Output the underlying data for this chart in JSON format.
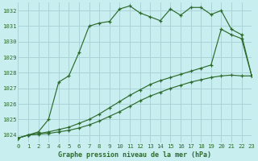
{
  "title": "Graphe pression niveau de la mer (hPa)",
  "bg_color": "#c8eef0",
  "grid_color": "#aad4d8",
  "line_color": "#2d6b2d",
  "xlim": [
    0,
    23
  ],
  "ylim": [
    1023.5,
    1032.5
  ],
  "yticks": [
    1024,
    1025,
    1026,
    1027,
    1028,
    1029,
    1030,
    1031,
    1032
  ],
  "xticks": [
    0,
    1,
    2,
    3,
    4,
    5,
    6,
    7,
    8,
    9,
    10,
    11,
    12,
    13,
    14,
    15,
    16,
    17,
    18,
    19,
    20,
    21,
    22,
    23
  ],
  "series1_x": [
    0,
    1,
    2,
    3,
    4,
    5,
    6,
    7,
    8,
    9,
    10,
    11,
    12,
    13,
    14,
    15,
    16,
    17,
    18,
    19,
    20,
    21,
    22,
    23
  ],
  "series1_y": [
    1023.8,
    1024.0,
    1024.2,
    1025.0,
    1027.4,
    1027.8,
    1029.3,
    1031.0,
    1031.2,
    1031.3,
    1032.1,
    1032.3,
    1031.85,
    1031.6,
    1031.35,
    1032.1,
    1031.7,
    1032.2,
    1032.2,
    1031.75,
    1032.0,
    1030.8,
    1030.45,
    1027.8
  ],
  "series2_x": [
    0,
    1,
    2,
    3,
    4,
    5,
    6,
    7,
    8,
    9,
    10,
    11,
    12,
    13,
    14,
    15,
    16,
    17,
    18,
    19,
    20,
    21,
    22,
    23
  ],
  "series2_y": [
    1023.8,
    1024.0,
    1024.1,
    1024.2,
    1024.35,
    1024.5,
    1024.75,
    1025.0,
    1025.35,
    1025.75,
    1026.15,
    1026.55,
    1026.9,
    1027.25,
    1027.5,
    1027.7,
    1027.9,
    1028.1,
    1028.3,
    1028.5,
    1030.8,
    1030.45,
    1030.2,
    1027.8
  ],
  "series3_x": [
    0,
    1,
    2,
    3,
    4,
    5,
    6,
    7,
    8,
    9,
    10,
    11,
    12,
    13,
    14,
    15,
    16,
    17,
    18,
    19,
    20,
    21,
    22,
    23
  ],
  "series3_y": [
    1023.8,
    1024.0,
    1024.05,
    1024.1,
    1024.2,
    1024.3,
    1024.45,
    1024.65,
    1024.9,
    1025.2,
    1025.5,
    1025.85,
    1026.2,
    1026.5,
    1026.75,
    1027.0,
    1027.2,
    1027.4,
    1027.55,
    1027.7,
    1027.8,
    1027.85,
    1027.8,
    1027.8
  ]
}
